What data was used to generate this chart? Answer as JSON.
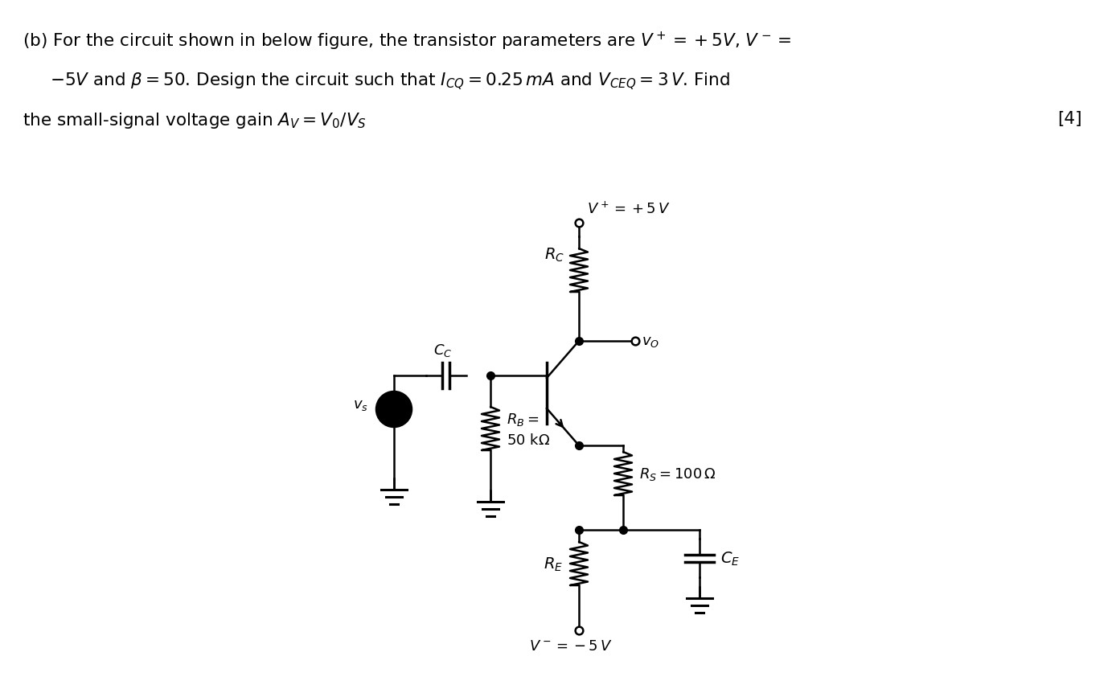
{
  "bg_color": "#ffffff",
  "line_color": "#000000",
  "source_fill": "#f5b8c4",
  "label_RC": "$R_C$",
  "label_RB_1": "$R_B =$",
  "label_RB_2": "50 k$\\Omega$",
  "label_RS": "$R_S = 100\\,\\Omega$",
  "label_RE": "$R_E$",
  "label_CC": "$C_C$",
  "label_CE": "$C_E$",
  "label_VS": "$v_s$",
  "label_VO": "$v_O$",
  "label_Vplus": "$V^+ = +5\\,V$",
  "label_Vminus": "$V^- = -5\\,V$",
  "header1": "(b) For the circuit shown in below figure, the transistor parameters are $V^+ = +5V$, $V^- =$",
  "header2": "$-5V$ and $\\beta = 50$. Design the circuit such that $I_{CQ} = 0.25\\,mA$ and $V_{CEQ} = 3\\,V$. Find",
  "header3": "the small-signal voltage gain $A_V = V_0/V_S$",
  "mark4": "[4]"
}
